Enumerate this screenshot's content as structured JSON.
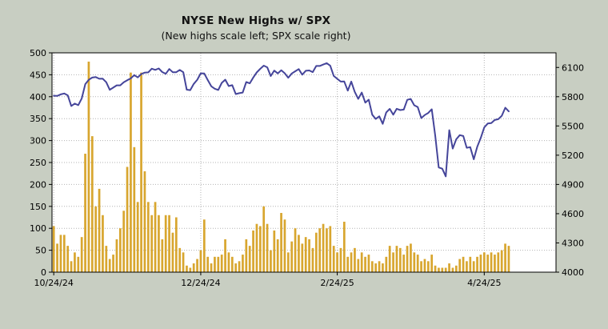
{
  "chart_data": {
    "type": "bar",
    "title": "NYSE New Highs w/ SPX",
    "subtitle": "(New highs scale left; SPX scale right)",
    "background_color": "#c8cec2",
    "plot_background": "#ffffff",
    "grid": true,
    "legend_position": "none",
    "x_slots": 144,
    "x": [
      "10/24/24",
      "10/25/24",
      "10/28/24",
      "10/29/24",
      "10/30/24",
      "10/31/24",
      "11/1/24",
      "11/4/24",
      "11/5/24",
      "11/6/24",
      "11/7/24",
      "11/8/24",
      "11/11/24",
      "11/12/24",
      "11/13/24",
      "11/14/24",
      "11/15/24",
      "11/18/24",
      "11/19/24",
      "11/20/24",
      "11/21/24",
      "11/22/24",
      "11/25/24",
      "11/26/24",
      "11/27/24",
      "11/29/24",
      "12/2/24",
      "12/3/24",
      "12/4/24",
      "12/5/24",
      "12/6/24",
      "12/9/24",
      "12/10/24",
      "12/11/24",
      "12/12/24",
      "12/13/24",
      "12/16/24",
      "12/17/24",
      "12/18/24",
      "12/19/24",
      "12/20/24",
      "12/23/24",
      "12/24/24",
      "12/26/24",
      "12/27/24",
      "12/30/24",
      "12/31/24",
      "1/2/25",
      "1/3/25",
      "1/6/25",
      "1/7/25",
      "1/8/25",
      "1/10/25",
      "1/13/25",
      "1/14/25",
      "1/15/25",
      "1/16/25",
      "1/17/25",
      "1/21/25",
      "1/22/25",
      "1/23/25",
      "1/24/25",
      "1/27/25",
      "1/28/25",
      "1/29/25",
      "1/30/25",
      "1/31/25",
      "2/3/25",
      "2/4/25",
      "2/5/25",
      "2/6/25",
      "2/7/25",
      "2/10/25",
      "2/11/25",
      "2/12/25",
      "2/13/25",
      "2/14/25",
      "2/18/25",
      "2/19/25",
      "2/20/25",
      "2/21/25",
      "2/24/25",
      "2/25/25",
      "2/26/25",
      "2/27/25",
      "2/28/25",
      "3/3/25",
      "3/4/25",
      "3/5/25",
      "3/6/25",
      "3/7/25",
      "3/10/25",
      "3/11/25",
      "3/12/25",
      "3/13/25",
      "3/14/25",
      "3/17/25",
      "3/18/25",
      "3/19/25",
      "3/20/25",
      "3/21/25",
      "3/24/25",
      "3/25/25",
      "3/26/25",
      "3/27/25",
      "3/28/25",
      "3/31/25",
      "4/1/25",
      "4/2/25",
      "4/3/25",
      "4/4/25",
      "4/7/25",
      "4/8/25",
      "4/9/25",
      "4/10/25",
      "4/11/25",
      "4/14/25",
      "4/15/25",
      "4/16/25",
      "4/17/25",
      "4/21/25",
      "4/22/25",
      "4/23/25",
      "4/24/25",
      "4/25/25",
      "4/28/25",
      "4/29/25",
      "4/30/25",
      "5/1/25",
      "5/2/25",
      "5/5/25"
    ],
    "series": [
      {
        "name": "NYSE New Highs",
        "type": "bar",
        "axis": "left",
        "color": "#d8a62f",
        "values": [
          105,
          65,
          85,
          85,
          60,
          25,
          45,
          35,
          80,
          270,
          480,
          310,
          150,
          190,
          130,
          60,
          30,
          40,
          75,
          100,
          140,
          240,
          455,
          285,
          160,
          455,
          230,
          160,
          130,
          160,
          130,
          75,
          130,
          130,
          90,
          125,
          55,
          45,
          15,
          10,
          20,
          30,
          50,
          120,
          35,
          20,
          35,
          35,
          40,
          75,
          45,
          35,
          20,
          25,
          40,
          75,
          60,
          95,
          110,
          105,
          150,
          110,
          50,
          95,
          75,
          135,
          120,
          45,
          70,
          100,
          85,
          65,
          80,
          75,
          55,
          90,
          100,
          110,
          100,
          105,
          60,
          45,
          55,
          115,
          35,
          45,
          55,
          30,
          45,
          35,
          40,
          25,
          20,
          25,
          20,
          35,
          60,
          45,
          60,
          55,
          40,
          60,
          65,
          45,
          40,
          25,
          30,
          25,
          40,
          15,
          10,
          10,
          10,
          20,
          10,
          15,
          30,
          35,
          25,
          35,
          25,
          35,
          40,
          45,
          40,
          45,
          40,
          45,
          50,
          65,
          60
        ]
      },
      {
        "name": "SPX",
        "type": "line",
        "axis": "right",
        "color": "#45459a",
        "values": [
          5810,
          5808,
          5824,
          5833,
          5814,
          5705,
          5729,
          5713,
          5783,
          5929,
          5973,
          5996,
          6001,
          5984,
          5985,
          5949,
          5871,
          5894,
          5917,
          5917,
          5949,
          5969,
          5987,
          6022,
          5998,
          6032,
          6047,
          6050,
          6087,
          6075,
          6090,
          6053,
          6035,
          6084,
          6051,
          6051,
          6074,
          6051,
          5872,
          5867,
          5931,
          5974,
          6040,
          6038,
          5971,
          5907,
          5882,
          5869,
          5942,
          5975,
          5909,
          5918,
          5827,
          5836,
          5843,
          5950,
          5937,
          5997,
          6049,
          6086,
          6119,
          6101,
          6012,
          6068,
          6039,
          6071,
          6041,
          5995,
          6038,
          6061,
          6083,
          6026,
          6066,
          6069,
          6052,
          6115,
          6115,
          6130,
          6144,
          6118,
          6013,
          5983,
          5955,
          5956,
          5862,
          5955,
          5850,
          5778,
          5843,
          5739,
          5770,
          5615,
          5572,
          5599,
          5522,
          5639,
          5675,
          5615,
          5676,
          5663,
          5668,
          5768,
          5777,
          5712,
          5693,
          5581,
          5612,
          5633,
          5671,
          5396,
          5074,
          5062,
          4983,
          5457,
          5268,
          5363,
          5406,
          5397,
          5276,
          5283,
          5158,
          5288,
          5376,
          5485,
          5525,
          5529,
          5561,
          5569,
          5604,
          5687,
          5650
        ]
      }
    ],
    "left_axis": {
      "min": 0,
      "max": 500,
      "ticks": [
        0,
        50,
        100,
        150,
        200,
        250,
        300,
        350,
        400,
        450,
        500
      ]
    },
    "right_axis": {
      "min": 4000,
      "max": 6250,
      "ticks": [
        4000,
        4300,
        4600,
        4900,
        5200,
        5500,
        5800,
        6100
      ]
    },
    "x_ticks": [
      {
        "label": "10/24/24",
        "index": 0
      },
      {
        "label": "12/24/24",
        "index": 42
      },
      {
        "label": "2/24/25",
        "index": 81
      },
      {
        "label": "4/24/25",
        "index": 123
      }
    ]
  }
}
